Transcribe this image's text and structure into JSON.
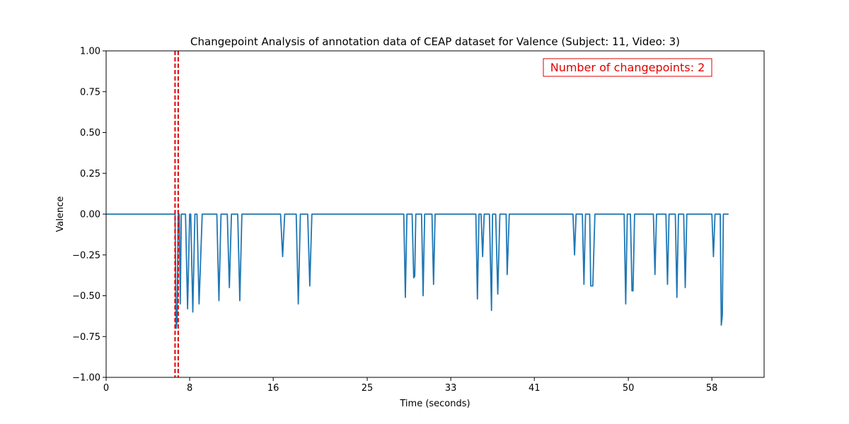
{
  "chart_data": {
    "type": "line",
    "title": "Changepoint Analysis of annotation data of CEAP dataset for Valence (Subject: 11, Video: 3)",
    "xlabel": "Time (seconds)",
    "ylabel": "Valence",
    "xlim": [
      0,
      63
    ],
    "ylim": [
      -1.0,
      1.0
    ],
    "xticks": [
      0,
      8,
      16,
      25,
      33,
      41,
      50,
      58
    ],
    "xtick_labels": [
      "0",
      "8",
      "16",
      "25",
      "33",
      "41",
      "50",
      "58"
    ],
    "yticks": [
      1.0,
      0.75,
      0.5,
      0.25,
      0.0,
      -0.25,
      -0.5,
      -0.75,
      -1.0
    ],
    "ytick_labels": [
      "1.00",
      "0.75",
      "0.50",
      "0.25",
      "0.00",
      "−0.25",
      "−0.50",
      "−0.75",
      "−1.00"
    ],
    "grid": false,
    "line_color": "#1f77b4",
    "changepoint_color": "#e00000",
    "series": [
      {
        "x": [
          0,
          6.6,
          6.7,
          6.8,
          6.9,
          7.0,
          7.1,
          7.2,
          7.3,
          7.4,
          7.6,
          7.8,
          8.0,
          8.1,
          8.3,
          8.5,
          8.7,
          8.9,
          9.2,
          9.4,
          9.6,
          10.6,
          10.8,
          11.0,
          11.6,
          11.8,
          12.0,
          12.6,
          12.8,
          13.0,
          16.7,
          16.9,
          17.1,
          18.2,
          18.4,
          18.6,
          19.3,
          19.5,
          19.7,
          28.5,
          28.65,
          28.8,
          29.3,
          29.45,
          29.55,
          29.65,
          30.2,
          30.35,
          30.5,
          31.2,
          31.35,
          31.5,
          35.4,
          35.55,
          35.7,
          35.9,
          36.05,
          36.2,
          36.7,
          36.9,
          37.0,
          37.3,
          37.5,
          37.7,
          38.3,
          38.4,
          38.6,
          38.9,
          39.1,
          39.3,
          44.7,
          44.85,
          45.0,
          45.6,
          45.75,
          45.9,
          46.3,
          46.4,
          46.6,
          46.8,
          49.6,
          49.75,
          49.9,
          50.2,
          50.35,
          50.45,
          50.6,
          52.4,
          52.55,
          52.7,
          53.6,
          53.75,
          53.9,
          54.5,
          54.65,
          54.8,
          55.3,
          55.45,
          55.6,
          58.0,
          58.15,
          58.3,
          58.8,
          58.9,
          59.0,
          59.1,
          59.3,
          59.6
        ],
        "y": [
          0.0,
          0.0,
          -0.7,
          -0.65,
          0.0,
          0.0,
          -0.55,
          0.0,
          0.0,
          0.0,
          0.0,
          -0.58,
          0.0,
          0.0,
          -0.6,
          0.0,
          0.0,
          -0.55,
          0.0,
          0.0,
          0.0,
          0.0,
          -0.53,
          0.0,
          0.0,
          -0.45,
          0.0,
          0.0,
          -0.53,
          0.0,
          0.0,
          -0.26,
          0.0,
          0.0,
          -0.55,
          0.0,
          0.0,
          -0.44,
          0.0,
          0.0,
          -0.51,
          0.0,
          0.0,
          -0.39,
          -0.38,
          0.0,
          0.0,
          -0.5,
          0.0,
          0.0,
          -0.43,
          0.0,
          0.0,
          -0.52,
          0.0,
          0.0,
          -0.26,
          0.0,
          0.0,
          -0.59,
          0.0,
          0.0,
          -0.49,
          0.0,
          0.0,
          -0.37,
          0.0,
          0.0,
          0.0,
          0.0,
          0.0,
          -0.25,
          0.0,
          0.0,
          -0.43,
          0.0,
          0.0,
          -0.44,
          -0.44,
          0.0,
          0.0,
          -0.55,
          0.0,
          0.0,
          -0.47,
          -0.47,
          0.0,
          0.0,
          -0.37,
          0.0,
          0.0,
          -0.43,
          0.0,
          0.0,
          -0.51,
          0.0,
          0.0,
          -0.45,
          0.0,
          0.0,
          -0.26,
          0.0,
          0.0,
          -0.68,
          -0.62,
          0.0,
          0.0,
          0.0
        ]
      }
    ],
    "changepoints": [
      6.6,
      6.9
    ],
    "annotation": {
      "text": "Number of changepoints: 2",
      "placement": "top-right"
    }
  }
}
